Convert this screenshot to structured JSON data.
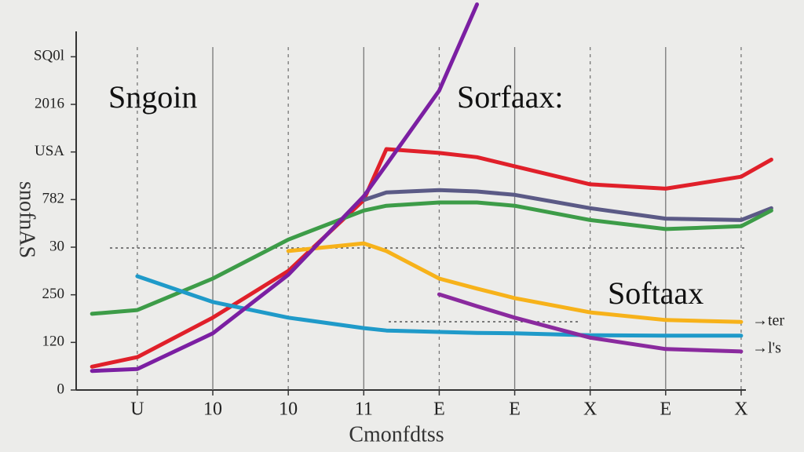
{
  "chart_data": {
    "type": "line",
    "title": "Sngoin",
    "annotations": [
      "Sorfaax:",
      "Softaax",
      "→ter",
      "→l's"
    ],
    "xlabel": "Cmonfdtss",
    "ylabel": "snofnAS",
    "x": [
      0.4,
      1,
      2,
      3,
      4,
      4.3,
      5,
      5.5,
      6,
      7,
      8,
      9,
      9.4
    ],
    "xlim": [
      0.2,
      9.5
    ],
    "xticks": [
      {
        "value": 1,
        "label": "U"
      },
      {
        "value": 2,
        "label": "10"
      },
      {
        "value": 3,
        "label": "10"
      },
      {
        "value": 4,
        "label": "11"
      },
      {
        "value": 5,
        "label": "E"
      },
      {
        "value": 6,
        "label": "E"
      },
      {
        "value": 7,
        "label": "X"
      },
      {
        "value": 8,
        "label": "E"
      },
      {
        "value": 9,
        "label": "X"
      }
    ],
    "ylim": [
      0,
      7.5
    ],
    "yticks": [
      0,
      {
        "value": 1,
        "label": "120"
      },
      {
        "value": 2,
        "label": "250"
      },
      {
        "value": 3,
        "label": "30"
      },
      {
        "value": 4,
        "label": "782"
      },
      {
        "value": 5,
        "label": "USA"
      },
      {
        "value": 6,
        "label": "2016"
      },
      {
        "value": 7,
        "label": "SQ0l"
      }
    ],
    "grid": true,
    "series": [
      {
        "color": "#e0202a",
        "values": [
          0.49,
          0.69,
          1.52,
          2.5,
          3.99,
          5.06,
          4.98,
          4.89,
          4.7,
          4.32,
          4.23,
          4.48,
          4.84
        ]
      },
      {
        "color": "#5b5a86",
        "values": [
          null,
          null,
          null,
          null,
          3.99,
          4.15,
          4.2,
          4.17,
          4.1,
          3.82,
          3.6,
          3.57,
          3.82
        ]
      },
      {
        "color": "#3d9c48",
        "values": [
          1.6,
          1.68,
          2.34,
          3.16,
          3.77,
          3.87,
          3.94,
          3.94,
          3.87,
          3.57,
          3.38,
          3.44,
          3.77
        ]
      },
      {
        "color": "#f7b21a",
        "values": [
          null,
          null,
          null,
          2.92,
          3.08,
          2.92,
          2.34,
          2.13,
          1.93,
          1.63,
          1.47,
          1.43,
          null
        ]
      },
      {
        "color": "#1f9ac9",
        "values": [
          null,
          2.39,
          1.85,
          1.52,
          1.3,
          1.25,
          1.22,
          1.2,
          1.19,
          1.15,
          1.14,
          1.14,
          null
        ]
      },
      {
        "color": "#8a2a9e",
        "values": [
          null,
          null,
          null,
          null,
          null,
          null,
          2.01,
          1.76,
          1.52,
          1.1,
          0.86,
          0.81,
          null
        ]
      },
      {
        "color": "#7b1fa2",
        "values": [
          0.4,
          0.44,
          1.19,
          2.42,
          4.07,
          4.73,
          6.29,
          8.1,
          null,
          null,
          null,
          null,
          null
        ]
      }
    ]
  }
}
